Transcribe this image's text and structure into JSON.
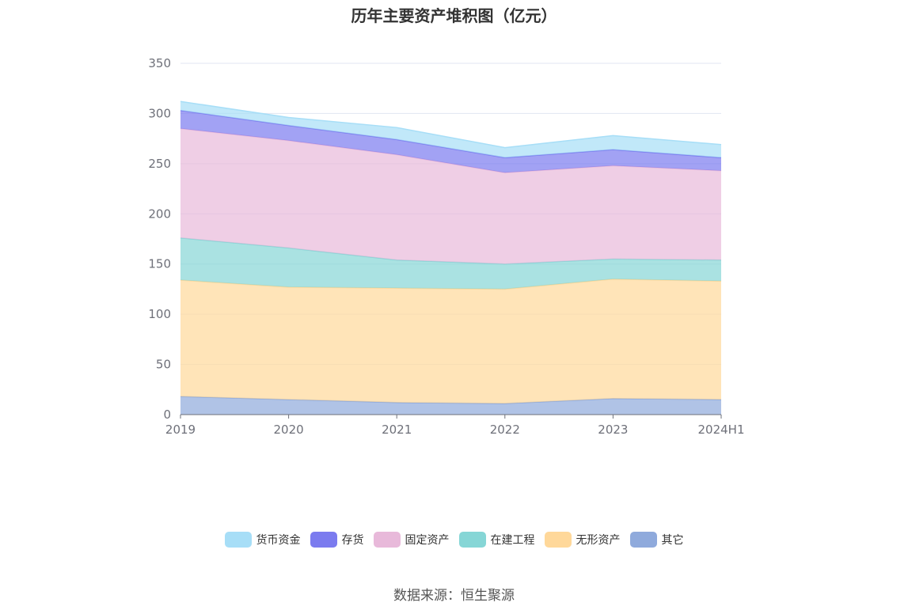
{
  "chart_data": {
    "type": "area",
    "stacked": true,
    "title": "历年主要资产堆积图（亿元）",
    "categories": [
      "2019",
      "2020",
      "2021",
      "2022",
      "2023",
      "2024H1"
    ],
    "ylim": [
      0,
      350
    ],
    "yticks": [
      0,
      50,
      100,
      150,
      200,
      250,
      300,
      350
    ],
    "xlabel": "",
    "ylabel": "",
    "grid": true,
    "legend_position": "bottom",
    "series": [
      {
        "name": "其它",
        "color": "#8FAADC",
        "values": [
          18,
          15,
          12,
          11,
          16,
          15
        ]
      },
      {
        "name": "无形资产",
        "color": "#FFD89A",
        "values": [
          116,
          112,
          114,
          114,
          119,
          118
        ]
      },
      {
        "name": "在建工程",
        "color": "#86D6D6",
        "values": [
          42,
          39,
          28,
          25,
          20,
          21
        ]
      },
      {
        "name": "固定资产",
        "color": "#E8B9DA",
        "values": [
          109,
          107,
          105,
          91,
          93,
          89
        ]
      },
      {
        "name": "存货",
        "color": "#7B7BEF",
        "values": [
          18,
          15,
          15,
          15,
          16,
          13
        ]
      },
      {
        "name": "货币资金",
        "color": "#A7DEF7",
        "values": [
          9,
          8,
          12,
          10,
          14,
          13
        ]
      }
    ],
    "legend_order": [
      "货币资金",
      "存货",
      "固定资产",
      "在建工程",
      "无形资产",
      "其它"
    ]
  },
  "footer": {
    "source": "数据来源：恒生聚源"
  }
}
